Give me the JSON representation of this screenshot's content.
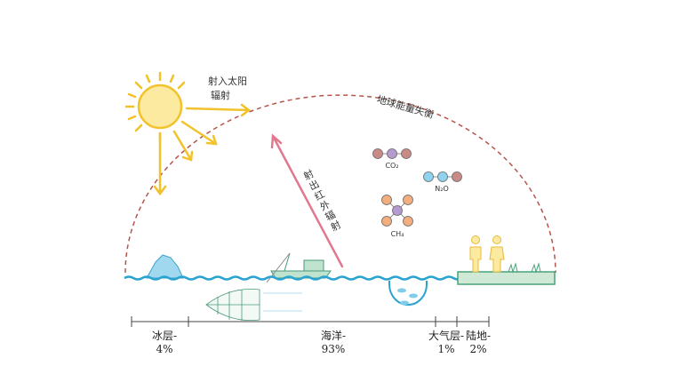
{
  "incoming": [
    "射入太阳",
    "辐射"
  ],
  "imbalance": "地球能量失衡",
  "outgoing": "射出红外辐射",
  "molecules": [
    "CO₂",
    "N₂O",
    "CH₄"
  ],
  "segments": [
    {
      "name": "冰层-",
      "share": "4%"
    },
    {
      "name": "海洋-",
      "share": "93%"
    },
    {
      "name": "大气层-",
      "share": "1%"
    },
    {
      "name": "陆地-",
      "share": "2%"
    }
  ]
}
